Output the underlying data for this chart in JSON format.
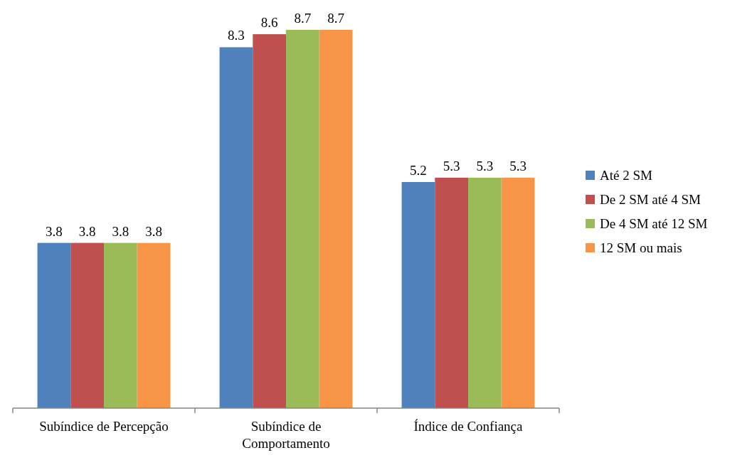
{
  "chart_data": {
    "type": "bar",
    "categories": [
      "Subíndice de Percepção",
      "Subíndice de Comportamento",
      "Índice de Confiança"
    ],
    "series": [
      {
        "name": "Até 2 SM",
        "color": "#4f81bd",
        "values": [
          3.8,
          8.3,
          5.2
        ]
      },
      {
        "name": "De 2 SM até 4 SM",
        "color": "#c0504d",
        "values": [
          3.8,
          8.6,
          5.3
        ]
      },
      {
        "name": "De 4 SM até 12 SM",
        "color": "#9bbb59",
        "values": [
          3.8,
          8.7,
          5.3
        ]
      },
      {
        "name": "12 SM ou mais",
        "color": "#f79646",
        "values": [
          3.8,
          8.7,
          5.3
        ]
      }
    ],
    "data_labels": true,
    "legend": "right"
  }
}
